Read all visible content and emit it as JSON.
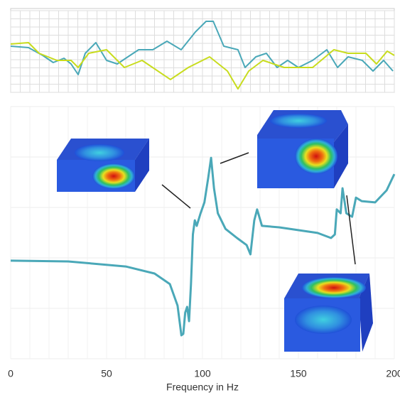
{
  "chart_data": [
    {
      "type": "line",
      "xlim": [
        0,
        200
      ],
      "ylim": [
        0,
        10
      ],
      "grid": true,
      "series": [
        {
          "color": "#4aa8b8",
          "x": [
            0,
            9.3,
            16.7,
            22.2,
            27.8,
            31.5,
            35.2,
            38.9,
            44.4,
            50,
            55.6,
            61.1,
            66.7,
            74.1,
            81.5,
            88.9,
            96.3,
            101.9,
            105.6,
            111.1,
            118.5,
            122.2,
            127.8,
            133.3,
            138.9,
            144.4,
            150,
            157.4,
            164.8,
            170.4,
            175.9,
            183.3,
            188.9,
            194.4,
            199.3
          ],
          "values": [
            5.65,
            5.48,
            4.52,
            3.65,
            4.17,
            3.48,
            2.17,
            4.78,
            6.09,
            3.91,
            3.48,
            4.35,
            5.22,
            5.22,
            6.26,
            5.22,
            7.39,
            8.7,
            8.7,
            5.65,
            5.22,
            3.04,
            4.35,
            4.78,
            3.04,
            3.91,
            3.04,
            3.91,
            5.22,
            3.04,
            4.35,
            3.91,
            2.61,
            3.91,
            2.61
          ]
        },
        {
          "color": "#c8dc1e",
          "x": [
            0,
            9.3,
            14.8,
            24.1,
            31.5,
            35.2,
            40.7,
            50,
            59.3,
            68.5,
            83.3,
            92.6,
            103.7,
            113,
            118.5,
            124.1,
            131.5,
            142.6,
            157.4,
            168.5,
            175.9,
            185.2,
            190.7,
            196.3,
            200
          ],
          "values": [
            5.91,
            6.09,
            4.78,
            3.91,
            3.91,
            3.04,
            4.78,
            5.22,
            3.04,
            3.91,
            1.57,
            3.04,
            4.35,
            2.61,
            0.43,
            2.61,
            3.91,
            3.04,
            3.04,
            5.22,
            4.78,
            4.78,
            3.48,
            5.04,
            4.52
          ]
        }
      ]
    },
    {
      "type": "line",
      "xlabel": "Frequency in Hz",
      "xlim": [
        0,
        200
      ],
      "xticks": [
        0,
        50,
        100,
        150,
        200
      ],
      "ylim": [
        0,
        10
      ],
      "grid": true,
      "series": [
        {
          "color": "#4aa8b8",
          "x": [
            0,
            30,
            60,
            75,
            83,
            87,
            89,
            90,
            91,
            92,
            93,
            94,
            95,
            96,
            97,
            99,
            101,
            103,
            104.5,
            106,
            108,
            112,
            118,
            123,
            125,
            127,
            128.5,
            131,
            140,
            160,
            167,
            169,
            170,
            172,
            173,
            175,
            178,
            180,
            183,
            190,
            196,
            200
          ],
          "values": [
            3.89,
            3.86,
            3.66,
            3.38,
            2.96,
            2.11,
            0.93,
            0.99,
            1.83,
            2.06,
            1.49,
            2.96,
            4.93,
            5.49,
            5.27,
            5.77,
            6.2,
            7.18,
            7.97,
            6.76,
            5.77,
            5.15,
            4.79,
            4.51,
            4.14,
            5.49,
            5.92,
            5.27,
            5.21,
            4.99,
            4.79,
            4.93,
            5.92,
            5.77,
            6.76,
            5.77,
            5.63,
            6.39,
            6.25,
            6.2,
            6.68,
            7.32
          ]
        }
      ]
    }
  ]
}
